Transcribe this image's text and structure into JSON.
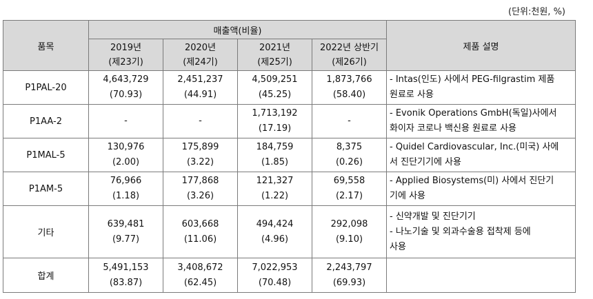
{
  "unit_note": "(단위:천원, %)",
  "header": {
    "item": "품목",
    "sales": "매출액(비율)",
    "description": "제품 설명",
    "periods": [
      {
        "year": "2019년",
        "term": "(제23기)"
      },
      {
        "year": "2020년",
        "term": "(제24기)"
      },
      {
        "year": "2021년",
        "term": "(제25기)"
      },
      {
        "year": "2022년 상반기",
        "term": "(제26기)"
      }
    ]
  },
  "rows": [
    {
      "item": "P1PAL-20",
      "values": [
        {
          "amount": "4,643,729",
          "ratio": "(70.93)"
        },
        {
          "amount": "2,451,237",
          "ratio": "(44.91)"
        },
        {
          "amount": "4,509,251",
          "ratio": "(45.25)"
        },
        {
          "amount": "1,873,766",
          "ratio": "(58.40)"
        }
      ],
      "desc": [
        "- Intas(인도) 사에서 PEG-filgrastim 제품",
        "원료로 사용"
      ]
    },
    {
      "item": "P1AA-2",
      "values": [
        {
          "amount": "-",
          "ratio": ""
        },
        {
          "amount": "-",
          "ratio": ""
        },
        {
          "amount": "1,713,192",
          "ratio": "(17.19)"
        },
        {
          "amount": "-",
          "ratio": ""
        }
      ],
      "desc": [
        "- Evonik Operations GmbH(독일)사에서",
        "화이자 코로나 백신용 원료로 사용"
      ]
    },
    {
      "item": "P1MAL-5",
      "values": [
        {
          "amount": "130,976",
          "ratio": "(2.00)"
        },
        {
          "amount": "175,899",
          "ratio": "(3.22)"
        },
        {
          "amount": "184,759",
          "ratio": "(1.85)"
        },
        {
          "amount": "8,375",
          "ratio": "(0.26)"
        }
      ],
      "desc": [
        "- Quidel Cardiovascular, Inc.(미국) 사에",
        "서 진단기기에 사용"
      ]
    },
    {
      "item": "P1AM-5",
      "values": [
        {
          "amount": "76,966",
          "ratio": "(1.18)"
        },
        {
          "amount": "177,868",
          "ratio": "(3.26)"
        },
        {
          "amount": "121,327",
          "ratio": "(1.22)"
        },
        {
          "amount": "69,558",
          "ratio": "(2.17)"
        }
      ],
      "desc": [
        "- Applied Biosystems(미) 사에서 진단기",
        "기에 사용"
      ]
    },
    {
      "item": "기타",
      "values": [
        {
          "amount": "639,481",
          "ratio": "(9.77)"
        },
        {
          "amount": "603,668",
          "ratio": "(11.06)"
        },
        {
          "amount": "494,424",
          "ratio": "(4.96)"
        },
        {
          "amount": "292,098",
          "ratio": "(9.10)"
        }
      ],
      "desc": [
        "- 신약개발 및 진단기기",
        "- 나노기술 및 외과수술용 접착제 등에",
        "사용"
      ]
    },
    {
      "item": "합계",
      "values": [
        {
          "amount": "5,491,153",
          "ratio": "(83.87)"
        },
        {
          "amount": "3,408,672",
          "ratio": "(62.45)"
        },
        {
          "amount": "7,022,953",
          "ratio": "(70.48)"
        },
        {
          "amount": "2,243,797",
          "ratio": "(69.93)"
        }
      ],
      "desc": []
    }
  ]
}
